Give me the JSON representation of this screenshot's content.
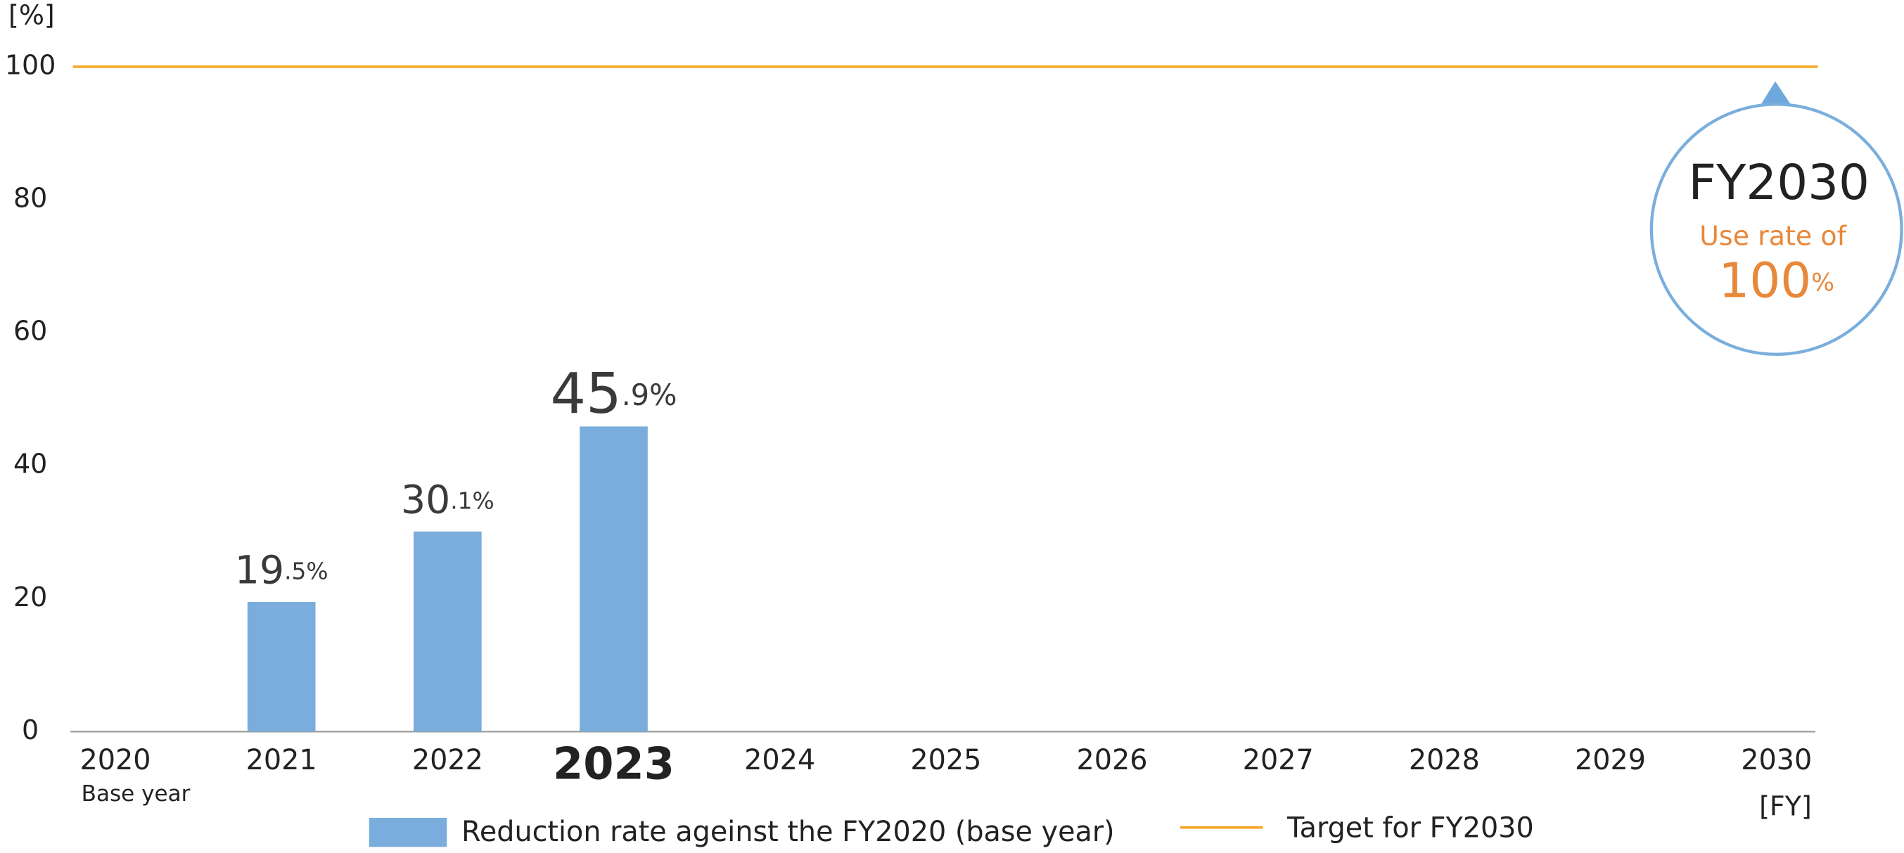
{
  "chart_data": {
    "type": "bar",
    "y_label": "[%]",
    "x_label": "[FY]",
    "categories": [
      "2020",
      "2021",
      "2022",
      "2023",
      "2024",
      "2025",
      "2026",
      "2027",
      "2028",
      "2029",
      "2030"
    ],
    "category_sublabels": [
      "Base year",
      null,
      null,
      null,
      null,
      null,
      null,
      null,
      null,
      null,
      null
    ],
    "highlight": "2023",
    "series": [
      {
        "name": "Reduction rate ageinst the FY2020 (base year)",
        "color": "#7aaddd",
        "values": [
          null,
          19.5,
          30.1,
          45.9,
          null,
          null,
          null,
          null,
          null,
          null,
          null
        ],
        "value_labels": [
          null,
          "19.5%",
          "30.1%",
          "45.9%",
          null,
          null,
          null,
          null,
          null,
          null,
          null
        ]
      }
    ],
    "target": {
      "name": "Target for FY2030",
      "value": 100,
      "color": "#f5a623"
    },
    "annotation": {
      "title": "FY2030",
      "text": "Use rate of",
      "value_label": "100%",
      "color": "#7aaedc",
      "text_color": "#e8883a"
    },
    "ylim": [
      0,
      100
    ],
    "yticks": [
      0,
      20,
      40,
      60,
      80,
      100
    ],
    "grid": false
  }
}
